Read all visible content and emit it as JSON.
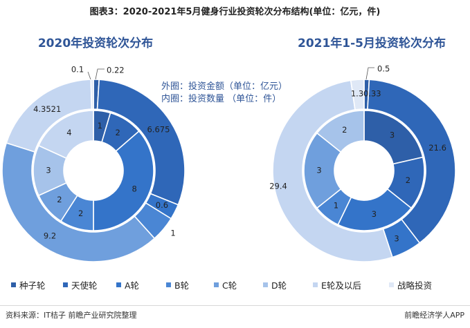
{
  "figure_title": "图表3：2020-2021年5月健身行业投资轮次分布结构(单位：亿元，件)",
  "note": {
    "outer": "外圈：投资金额（单位：亿元）",
    "inner": "内圈：投资数量  （单位：件）"
  },
  "source": "资料来源：IT桔子 前瞻产业研究院整理",
  "brand": "前瞻经济学人APP",
  "colors": {
    "种子轮": "#2e5fa8",
    "天使轮": "#2f67b8",
    "A轮": "#3474c9",
    "B轮": "#4a86d4",
    "C轮": "#6f9fdd",
    "D轮": "#a6c3ea",
    "E轮及以后": "#c4d6f1",
    "战略投资": "#dfe8f6"
  },
  "chart_data": [
    {
      "type": "donut",
      "title": "2020年投资轮次分布",
      "categories": [
        "种子轮",
        "天使轮",
        "A轮",
        "B轮",
        "C轮",
        "D轮",
        "E轮及以后",
        "战略投资"
      ],
      "outer_values": [
        0.22,
        6.675,
        0.6,
        1,
        9.2,
        null,
        4.3521,
        0.1
      ],
      "outer_labels": [
        "0.22",
        "6.675",
        "0.6",
        "1",
        "9.2",
        "",
        "4.3521",
        "0.1"
      ],
      "inner_values": [
        1,
        2,
        8,
        2,
        2,
        3,
        4,
        null
      ],
      "inner_labels": [
        "1",
        "2",
        "8",
        "2",
        "2",
        "3",
        "4",
        ""
      ]
    },
    {
      "type": "donut",
      "title": "2021年1-5月投资轮次分布",
      "categories": [
        "种子轮",
        "天使轮",
        "A轮",
        "B轮",
        "C轮",
        "D轮",
        "E轮及以后",
        "战略投资"
      ],
      "outer_values": [
        0.5,
        21.6,
        3,
        null,
        null,
        null,
        29.4,
        1.3
      ],
      "outer_labels": [
        "0.5",
        "21.6",
        "3",
        "",
        "",
        "",
        "29.4",
        "1.3"
      ],
      "inner_values": [
        3,
        2,
        3,
        1,
        3,
        2,
        null,
        null
      ],
      "inner_labels": [
        "3",
        "2",
        "3",
        "1",
        "3",
        "2",
        "",
        ""
      ],
      "extra_label": "0.33"
    }
  ],
  "legend": [
    "种子轮",
    "天使轮",
    "A轮",
    "B轮",
    "C轮",
    "D轮",
    "E轮及以后",
    "战略投资"
  ]
}
